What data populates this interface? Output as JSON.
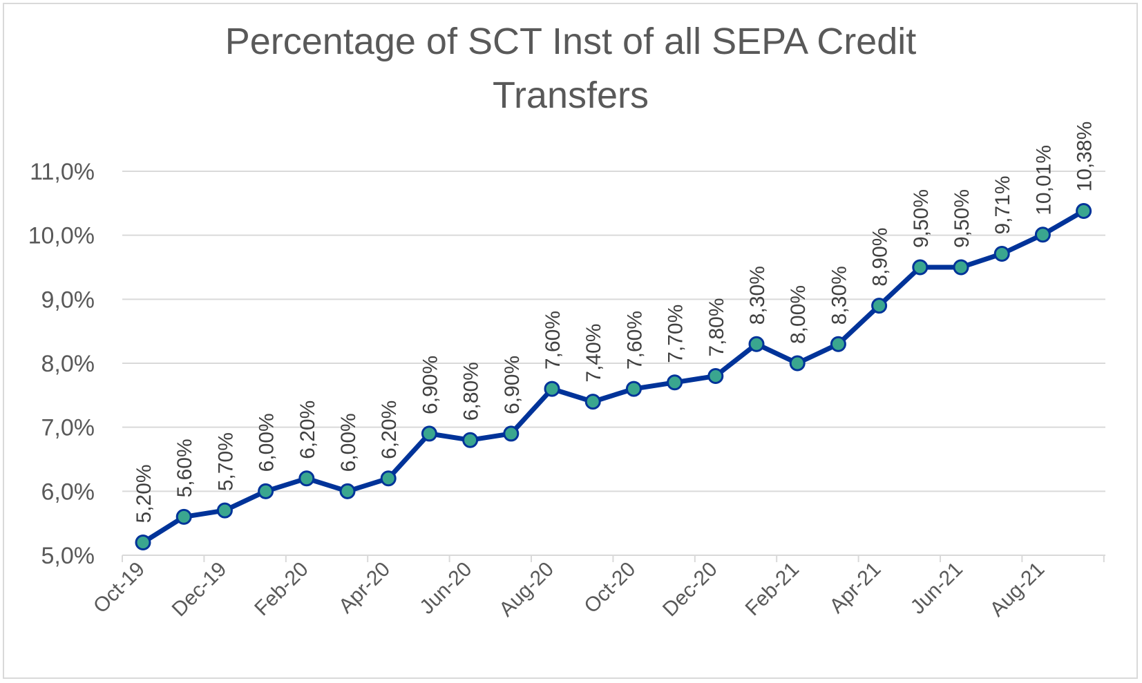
{
  "chart_data": {
    "type": "line",
    "title": "Percentage of SCT Inst of all SEPA Credit Transfers",
    "title_lines": [
      "Percentage of SCT Inst of all SEPA Credit",
      "Transfers"
    ],
    "xlabel": "",
    "ylabel": "",
    "ylim": [
      5.0,
      11.0
    ],
    "y_ticks": [
      5.0,
      6.0,
      7.0,
      8.0,
      9.0,
      10.0,
      11.0
    ],
    "y_tick_labels": [
      "5,0%",
      "6,0%",
      "7,0%",
      "8,0%",
      "9,0%",
      "10,0%",
      "11,0%"
    ],
    "x_tick_labels": [
      "Oct-19",
      "Dec-19",
      "Feb-20",
      "Apr-20",
      "Jun-20",
      "Aug-20",
      "Oct-20",
      "Dec-20",
      "Feb-21",
      "Apr-21",
      "Jun-21",
      "Aug-21"
    ],
    "grid": true,
    "legend": "none",
    "categories": [
      "Oct-19",
      "Nov-19",
      "Dec-19",
      "Jan-20",
      "Feb-20",
      "Mar-20",
      "Apr-20",
      "May-20",
      "Jun-20",
      "Jul-20",
      "Aug-20",
      "Sep-20",
      "Oct-20",
      "Nov-20",
      "Dec-20",
      "Jan-21",
      "Feb-21",
      "Mar-21",
      "Apr-21",
      "May-21",
      "Jun-21",
      "Jul-21",
      "Aug-21",
      "Sep-21"
    ],
    "series": [
      {
        "values": [
          5.2,
          5.6,
          5.7,
          6.0,
          6.2,
          6.0,
          6.2,
          6.9,
          6.8,
          6.9,
          7.6,
          7.4,
          7.6,
          7.7,
          7.8,
          8.3,
          8.0,
          8.3,
          8.9,
          9.5,
          9.5,
          9.71,
          10.01,
          10.38
        ],
        "data_labels": [
          "5,20%",
          "5,60%",
          "5,70%",
          "6,00%",
          "6,20%",
          "6,00%",
          "6,20%",
          "6,90%",
          "6,80%",
          "6,90%",
          "7,60%",
          "7,40%",
          "7,60%",
          "7,70%",
          "7,80%",
          "8,30%",
          "8,00%",
          "8,30%",
          "8,90%",
          "9,50%",
          "9,50%",
          "9,71%",
          "10,01%",
          "10,38%"
        ],
        "line_color": "#003399",
        "marker_color": "#3aa68f",
        "marker_edge_color": "#003399"
      }
    ]
  }
}
